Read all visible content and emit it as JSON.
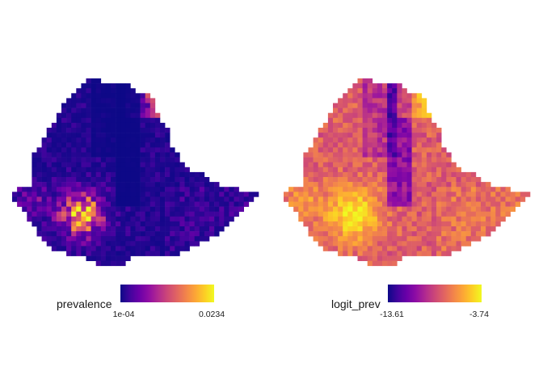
{
  "panels": [
    {
      "name": "prevalence",
      "legend": {
        "title": "prevalence",
        "min_label": "1e-04",
        "max_label": "0.0234",
        "min": 0.0001,
        "max": 0.0234,
        "palette": "plasma"
      }
    },
    {
      "name": "logit_prev",
      "legend": {
        "title": "logit_prev",
        "min_label": "-13.61",
        "max_label": "-3.74",
        "min": -13.61,
        "max": -3.74,
        "palette": "plasma"
      }
    }
  ],
  "colors": {
    "background": "#ffffff",
    "palette_low": "#0d0887",
    "palette_high": "#f0f921"
  }
}
